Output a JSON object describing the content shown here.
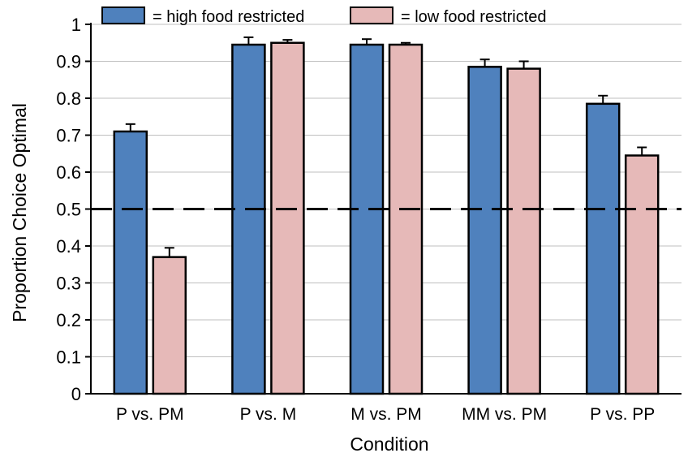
{
  "chart_data": {
    "type": "bar",
    "title": "",
    "xlabel": "Condition",
    "ylabel": "Proportion Choice Optimal",
    "ylim": [
      0,
      1
    ],
    "yticks": [
      "0",
      "0.1",
      "0.2",
      "0.3",
      "0.4",
      "0.5",
      "0.6",
      "0.7",
      "0.8",
      "0.9",
      "1"
    ],
    "categories": [
      "P vs. PM",
      "P vs. M",
      "M vs. PM",
      "MM vs. PM",
      "P vs. PP"
    ],
    "series": [
      {
        "name": "= high food restricted",
        "color": "#4f81bd",
        "values": [
          0.71,
          0.945,
          0.945,
          0.885,
          0.785
        ],
        "errors": [
          0.02,
          0.02,
          0.015,
          0.02,
          0.022
        ]
      },
      {
        "name": "=  low food restricted",
        "color": "#e6b9b8",
        "values": [
          0.37,
          0.95,
          0.945,
          0.88,
          0.645
        ],
        "errors": [
          0.025,
          0.008,
          0.005,
          0.02,
          0.022
        ]
      }
    ],
    "reference_line": {
      "y": 0.5,
      "style": "dashed"
    },
    "grid": true,
    "legend_position": "top"
  }
}
